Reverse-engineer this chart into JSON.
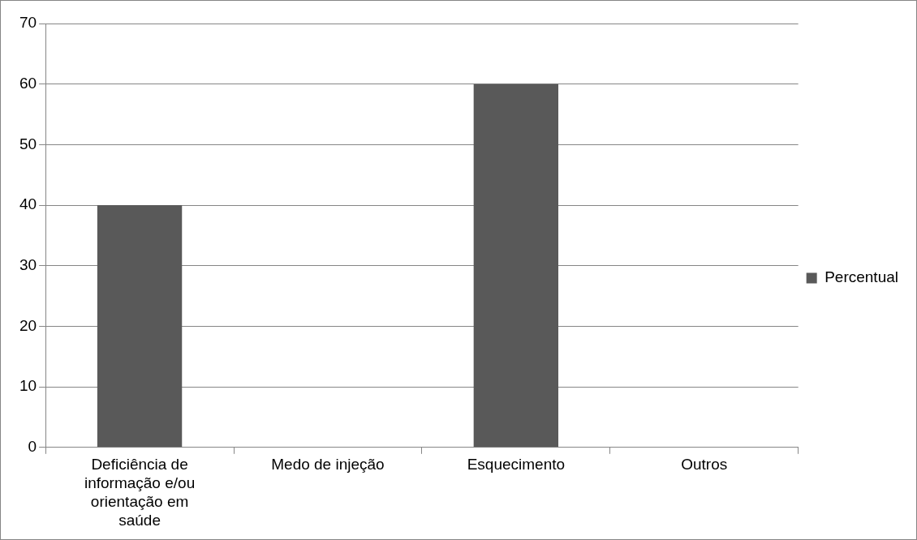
{
  "chart_data": {
    "type": "bar",
    "categories": [
      "Deficiência de informação e/ou orientação em saúde",
      "Medo de injeção",
      "Esquecimento",
      "Outros"
    ],
    "series": [
      {
        "name": "Percentual",
        "color": "#595959",
        "values": [
          40,
          0,
          60,
          0
        ]
      }
    ],
    "ylim": [
      0,
      70
    ],
    "yticks": [
      0,
      10,
      20,
      30,
      40,
      50,
      60,
      70
    ],
    "grid": "y",
    "legend": "right"
  }
}
